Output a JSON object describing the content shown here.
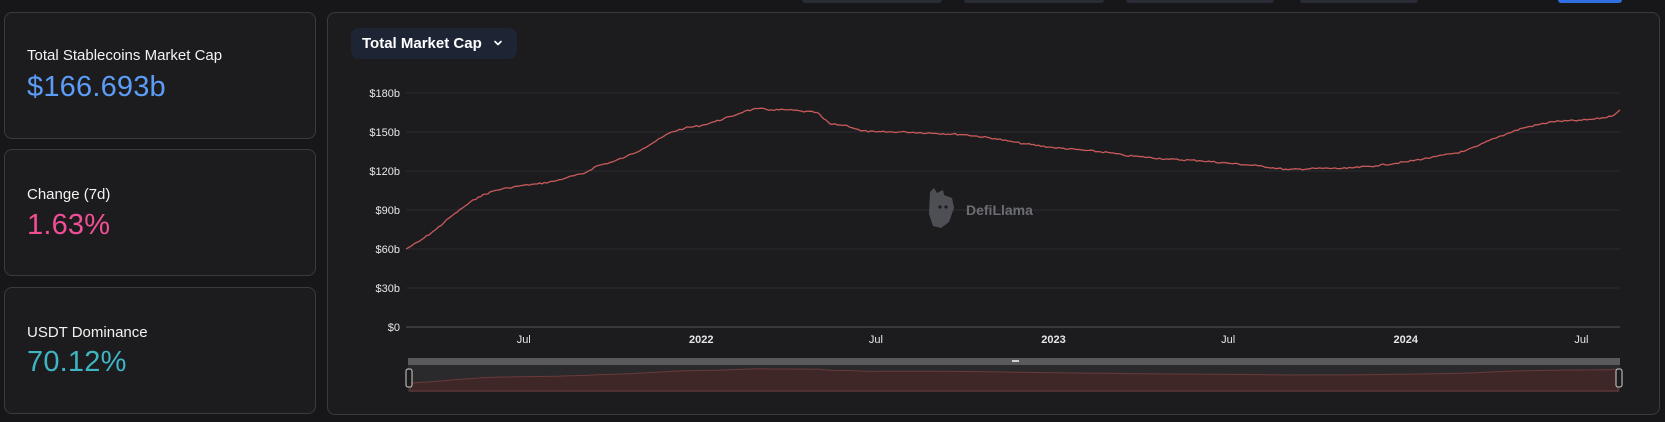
{
  "cards": [
    {
      "label": "Total Stablecoins Market Cap",
      "value": "$166.693b",
      "color": "#5b9cf6"
    },
    {
      "label": "Change (7d)",
      "value": "1.63%",
      "color": "#f24e96"
    },
    {
      "label": "USDT Dominance",
      "value": "70.12%",
      "color": "#3fb4c2"
    }
  ],
  "selector": {
    "label": "Total Market Cap",
    "icon": "chevron-down-icon"
  },
  "watermark": "DefiLlama",
  "colors": {
    "line": "#c95a5a",
    "brush_fill": "#3f2727",
    "grid": "#2c2d31"
  },
  "chart_data": {
    "type": "line",
    "title": "",
    "xlabel": "",
    "ylabel": "",
    "ylim": [
      0,
      180
    ],
    "y_unit": "billion USD",
    "y_ticks": [
      "$0",
      "$30b",
      "$60b",
      "$90b",
      "$120b",
      "$150b",
      "$180b"
    ],
    "x_ticks": [
      {
        "label": "Jul",
        "date": "2021-07-01",
        "bold": false
      },
      {
        "label": "2022",
        "date": "2022-01-01",
        "bold": true
      },
      {
        "label": "Jul",
        "date": "2022-07-01",
        "bold": false
      },
      {
        "label": "2023",
        "date": "2023-01-01",
        "bold": true
      },
      {
        "label": "Jul",
        "date": "2023-07-01",
        "bold": false
      },
      {
        "label": "2024",
        "date": "2024-01-01",
        "bold": true
      },
      {
        "label": "Jul",
        "date": "2024-07-01",
        "bold": false
      }
    ],
    "xlim": [
      "2021-03-01",
      "2024-08-10"
    ],
    "series": [
      {
        "x": [
          "2021-03-01",
          "2021-03-15",
          "2021-04-01",
          "2021-04-15",
          "2021-05-01",
          "2021-05-15",
          "2021-06-01",
          "2021-06-15",
          "2021-07-01",
          "2021-07-15",
          "2021-08-01",
          "2021-08-15",
          "2021-09-01",
          "2021-09-15",
          "2021-10-01",
          "2021-10-15",
          "2021-11-01",
          "2021-11-15",
          "2021-12-01",
          "2021-12-15",
          "2022-01-01",
          "2022-01-15",
          "2022-02-01",
          "2022-02-15",
          "2022-03-01",
          "2022-03-15",
          "2022-04-01",
          "2022-04-15",
          "2022-05-01",
          "2022-05-08",
          "2022-05-15",
          "2022-06-01",
          "2022-06-15",
          "2022-07-01",
          "2022-08-01",
          "2022-09-01",
          "2022-10-01",
          "2022-11-01",
          "2022-11-15",
          "2022-12-01",
          "2023-01-01",
          "2023-02-01",
          "2023-03-01",
          "2023-03-15",
          "2023-04-01",
          "2023-05-01",
          "2023-06-01",
          "2023-07-01",
          "2023-08-01",
          "2023-09-01",
          "2023-10-01",
          "2023-11-01",
          "2023-12-01",
          "2024-01-01",
          "2024-02-01",
          "2024-03-01",
          "2024-03-15",
          "2024-04-01",
          "2024-05-01",
          "2024-06-01",
          "2024-07-01",
          "2024-07-15",
          "2024-08-01",
          "2024-08-10"
        ],
        "values": [
          60,
          66,
          75,
          84,
          93,
          100,
          105,
          107,
          109,
          110,
          112,
          115,
          118,
          124,
          127,
          131,
          137,
          143,
          150,
          153,
          155,
          158,
          162,
          166,
          168,
          167,
          167,
          166,
          165,
          160,
          156,
          155,
          151,
          150,
          150,
          149,
          148,
          145,
          143,
          141,
          138,
          136,
          134,
          132,
          131,
          129,
          128,
          126,
          124,
          121,
          122,
          122,
          124,
          127,
          131,
          135,
          139,
          145,
          153,
          158,
          159,
          160,
          162,
          167
        ]
      }
    ]
  }
}
